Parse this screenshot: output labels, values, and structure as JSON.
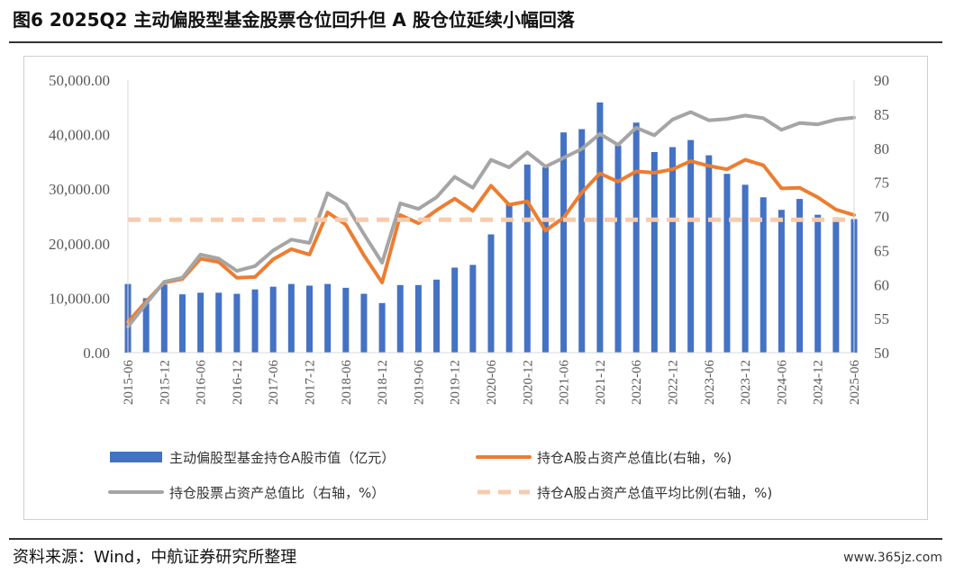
{
  "header": {
    "title": "图6  2025Q2 主动偏股型基金股票仓位回升但 A 股仓位延续小幅回落"
  },
  "footer": {
    "source": "资料来源：Wind，中航证券研究所整理",
    "watermark": "www.365jz.com"
  },
  "chart_data": {
    "type": "bar+line",
    "x": [
      "2015-06",
      "2015-09",
      "2015-12",
      "2016-03",
      "2016-06",
      "2016-09",
      "2016-12",
      "2017-03",
      "2017-06",
      "2017-09",
      "2017-12",
      "2018-03",
      "2018-06",
      "2018-09",
      "2018-12",
      "2019-03",
      "2019-06",
      "2019-09",
      "2019-12",
      "2020-03",
      "2020-06",
      "2020-09",
      "2020-12",
      "2021-03",
      "2021-06",
      "2021-09",
      "2021-12",
      "2022-03",
      "2022-06",
      "2022-09",
      "2022-12",
      "2023-03",
      "2023-06",
      "2023-09",
      "2023-12",
      "2024-03",
      "2024-06",
      "2024-09",
      "2024-12",
      "2025-03",
      "2025-06"
    ],
    "x_tick_labels": [
      "2015-06",
      "2015-12",
      "2016-06",
      "2016-12",
      "2017-06",
      "2017-12",
      "2018-06",
      "2018-12",
      "2019-06",
      "2019-12",
      "2020-06",
      "2020-12",
      "2021-06",
      "2021-12",
      "2022-06",
      "2022-12",
      "2023-06",
      "2023-12",
      "2024-06",
      "2024-12",
      "2025-06"
    ],
    "y_left": {
      "range": [
        0,
        50000
      ],
      "ticks": [
        "0.00",
        "10,000.00",
        "20,000.00",
        "30,000.00",
        "40,000.00",
        "50,000.00"
      ]
    },
    "y_right": {
      "range": [
        50,
        90
      ],
      "ticks": [
        "50",
        "55",
        "60",
        "65",
        "70",
        "75",
        "80",
        "85",
        "90"
      ]
    },
    "series": [
      {
        "name": "主动偏股型基金持仓A股市值（亿元）",
        "type": "bar",
        "axis": "left",
        "color": "#4472C4",
        "values": [
          12600,
          10000,
          12500,
          10700,
          11000,
          11000,
          10800,
          11600,
          12100,
          12600,
          12300,
          12600,
          11900,
          10800,
          9100,
          12400,
          12400,
          13400,
          15600,
          16100,
          21700,
          27400,
          34500,
          34000,
          40400,
          41000,
          45900,
          38000,
          42200,
          36800,
          37700,
          39000,
          36200,
          32800,
          30800,
          28500,
          26200,
          28200,
          25300,
          24800,
          24500
        ]
      },
      {
        "name": "持仓A股占资产总值比(右轴，%)",
        "type": "line",
        "axis": "right",
        "color": "#ED7D31",
        "values": [
          54.5,
          57.5,
          60.3,
          60.8,
          63.8,
          63.3,
          61.0,
          61.1,
          63.7,
          65.2,
          64.4,
          70.6,
          68.8,
          64.3,
          60.3,
          70.2,
          69.0,
          70.9,
          72.6,
          70.8,
          74.5,
          71.7,
          72.2,
          67.9,
          69.8,
          73.5,
          76.3,
          75.1,
          76.6,
          76.4,
          76.9,
          78.1,
          77.4,
          76.9,
          78.3,
          77.5,
          74.1,
          74.2,
          72.8,
          71.0,
          70.2
        ]
      },
      {
        "name": "持仓股票占资产总值比（右轴，%）",
        "type": "line",
        "axis": "right",
        "color": "#A5A5A5",
        "values": [
          53.8,
          57.2,
          60.4,
          61.0,
          64.4,
          63.8,
          62.0,
          62.7,
          65.0,
          66.6,
          66.1,
          73.4,
          71.8,
          67.4,
          63.2,
          71.9,
          71.1,
          72.8,
          75.8,
          74.2,
          78.3,
          77.2,
          79.4,
          77.3,
          78.6,
          79.9,
          82.1,
          80.5,
          83.0,
          81.9,
          84.2,
          85.3,
          84.1,
          84.3,
          84.8,
          84.4,
          82.7,
          83.7,
          83.5,
          84.2,
          84.5
        ]
      },
      {
        "name": "持仓A股占资产总值平均比例(右轴，%)",
        "type": "line",
        "axis": "right",
        "style": "dashed",
        "color": "#F8CBAD",
        "values": [
          69.5,
          69.5,
          69.5,
          69.5,
          69.5,
          69.5,
          69.5,
          69.5,
          69.5,
          69.5,
          69.5,
          69.5,
          69.5,
          69.5,
          69.5,
          69.5,
          69.5,
          69.5,
          69.5,
          69.5,
          69.5,
          69.5,
          69.5,
          69.5,
          69.5,
          69.5,
          69.5,
          69.5,
          69.5,
          69.5,
          69.5,
          69.5,
          69.5,
          69.5,
          69.5,
          69.5,
          69.5,
          69.5,
          69.5,
          69.5,
          69.5
        ]
      }
    ],
    "grid": false,
    "legend": "bottom"
  }
}
